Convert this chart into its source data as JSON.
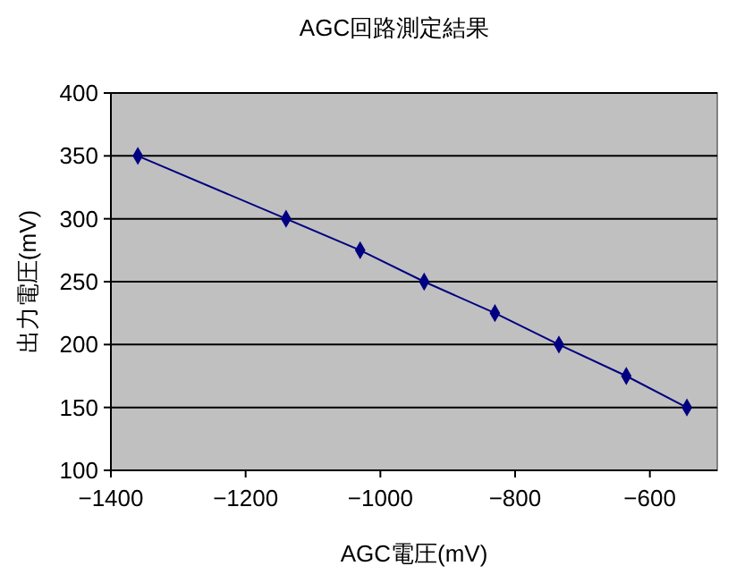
{
  "chart_data": {
    "type": "line",
    "title": "AGC回路測定結果",
    "xlabel": "AGC電圧(mV)",
    "ylabel": "出力電圧(mV)",
    "x": [
      -1360,
      -1140,
      -1030,
      -935,
      -830,
      -735,
      -635,
      -545
    ],
    "series": [
      {
        "color": "#000080",
        "values": [
          350,
          300,
          275,
          250,
          225,
          200,
          175,
          150
        ]
      }
    ],
    "xlim": [
      -1400,
      -500
    ],
    "xticks": [
      -1400,
      -1200,
      -1000,
      -800,
      -600
    ],
    "ylim": [
      100,
      400
    ],
    "yticks": [
      100,
      150,
      200,
      250,
      300,
      350,
      400
    ],
    "grid": "y",
    "marker": "diamond",
    "line_style": "solid"
  }
}
